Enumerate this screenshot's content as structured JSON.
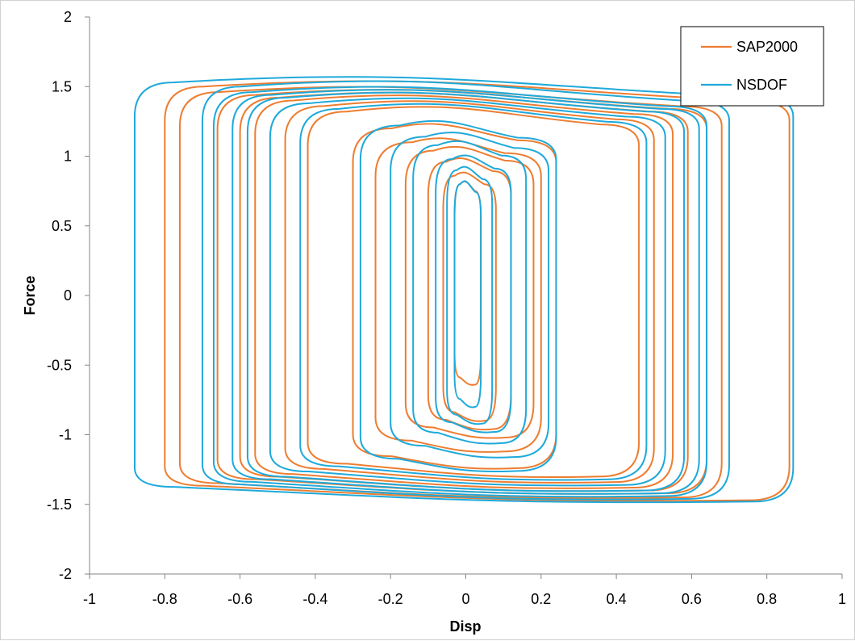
{
  "chart_data": {
    "type": "line",
    "title": "",
    "xlabel": "Disp",
    "ylabel": "Force",
    "xlim": [
      -1,
      1
    ],
    "ylim": [
      -2,
      2
    ],
    "x_ticks": [
      "-1",
      "-0.8",
      "-0.6",
      "-0.4",
      "-0.2",
      "0",
      "0.2",
      "0.4",
      "0.6",
      "0.8",
      "1"
    ],
    "y_ticks": [
      "2",
      "1.5",
      "1",
      "0.5",
      "0",
      "-0.5",
      "-1",
      "-1.5",
      "-2"
    ],
    "grid": false,
    "legend_position": "top-right",
    "series": [
      {
        "name": "SAP2000",
        "color": "#ED7D31",
        "loops": [
          {
            "xmin": -0.8,
            "xmax": 0.86,
            "ymin": -1.47,
            "ymax": 1.5
          },
          {
            "xmin": -0.76,
            "xmax": 0.68,
            "ymin": -1.45,
            "ymax": 1.46
          },
          {
            "xmin": -0.66,
            "xmax": 0.64,
            "ymin": -1.42,
            "ymax": 1.44
          },
          {
            "xmin": -0.6,
            "xmax": 0.59,
            "ymin": -1.4,
            "ymax": 1.42
          },
          {
            "xmin": -0.56,
            "xmax": 0.55,
            "ymin": -1.38,
            "ymax": 1.4
          },
          {
            "xmin": -0.48,
            "xmax": 0.5,
            "ymin": -1.34,
            "ymax": 1.36
          },
          {
            "xmin": -0.42,
            "xmax": 0.46,
            "ymin": -1.3,
            "ymax": 1.32
          },
          {
            "xmin": -0.3,
            "xmax": 0.24,
            "ymin": -1.24,
            "ymax": 1.2
          },
          {
            "xmin": -0.24,
            "xmax": 0.2,
            "ymin": -1.12,
            "ymax": 1.1
          },
          {
            "xmin": -0.16,
            "xmax": 0.18,
            "ymin": -1.02,
            "ymax": 1.04
          },
          {
            "xmin": -0.1,
            "xmax": 0.12,
            "ymin": -0.96,
            "ymax": 0.96
          },
          {
            "xmin": -0.06,
            "xmax": 0.08,
            "ymin": -0.9,
            "ymax": 0.86
          },
          {
            "xmin": -0.03,
            "xmax": 0.04,
            "ymin": -0.64,
            "ymax": 0.8
          }
        ]
      },
      {
        "name": "NSDOF",
        "color": "#1FA9DA",
        "loops": [
          {
            "xmin": -0.88,
            "xmax": 0.87,
            "ymin": -1.48,
            "ymax": 1.53
          },
          {
            "xmin": -0.7,
            "xmax": 0.7,
            "ymin": -1.46,
            "ymax": 1.5
          },
          {
            "xmin": -0.67,
            "xmax": 0.64,
            "ymin": -1.44,
            "ymax": 1.46
          },
          {
            "xmin": -0.62,
            "xmax": 0.62,
            "ymin": -1.42,
            "ymax": 1.44
          },
          {
            "xmin": -0.58,
            "xmax": 0.58,
            "ymin": -1.4,
            "ymax": 1.42
          },
          {
            "xmin": -0.52,
            "xmax": 0.53,
            "ymin": -1.36,
            "ymax": 1.38
          },
          {
            "xmin": -0.44,
            "xmax": 0.48,
            "ymin": -1.32,
            "ymax": 1.34
          },
          {
            "xmin": -0.28,
            "xmax": 0.24,
            "ymin": -1.26,
            "ymax": 1.22
          },
          {
            "xmin": -0.2,
            "xmax": 0.22,
            "ymin": -1.16,
            "ymax": 1.14
          },
          {
            "xmin": -0.14,
            "xmax": 0.16,
            "ymin": -1.06,
            "ymax": 1.08
          },
          {
            "xmin": -0.08,
            "xmax": 0.12,
            "ymin": -0.98,
            "ymax": 0.98
          },
          {
            "xmin": -0.05,
            "xmax": 0.07,
            "ymin": -0.92,
            "ymax": 0.9
          },
          {
            "xmin": -0.03,
            "xmax": 0.04,
            "ymin": -0.8,
            "ymax": 0.8
          }
        ]
      }
    ]
  }
}
